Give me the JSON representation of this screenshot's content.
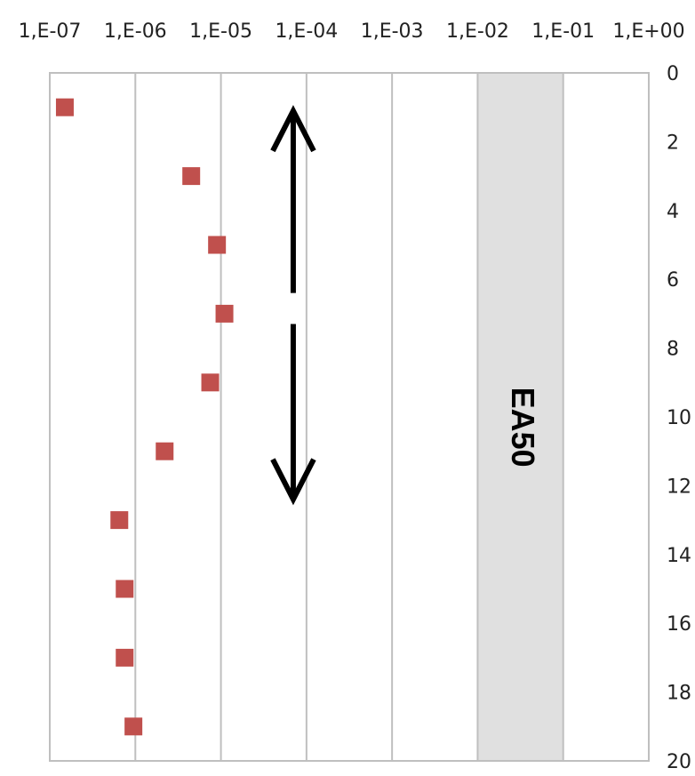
{
  "chart_data": {
    "type": "scatter",
    "x_scale": "log",
    "x_ticks": [
      {
        "value": 1e-07,
        "label": "1,E-07"
      },
      {
        "value": 1e-06,
        "label": "1,E-06"
      },
      {
        "value": 1e-05,
        "label": "1,E-05"
      },
      {
        "value": 0.0001,
        "label": "1,E-04"
      },
      {
        "value": 0.001,
        "label": "1,E-03"
      },
      {
        "value": 0.01,
        "label": "1,E-02"
      },
      {
        "value": 0.1,
        "label": "1,E-01"
      },
      {
        "value": 1,
        "label": "1,E+00"
      }
    ],
    "xlim": [
      1e-07,
      1
    ],
    "x_axis_position": "top",
    "y_ticks": [
      {
        "value": 0,
        "label": "0"
      },
      {
        "value": 2,
        "label": "2"
      },
      {
        "value": 4,
        "label": "4"
      },
      {
        "value": 6,
        "label": "6"
      },
      {
        "value": 8,
        "label": "8"
      },
      {
        "value": 10,
        "label": "10"
      },
      {
        "value": 12,
        "label": "12"
      },
      {
        "value": 14,
        "label": "14"
      },
      {
        "value": 16,
        "label": "16"
      },
      {
        "value": 18,
        "label": "18"
      },
      {
        "value": 20,
        "label": "20"
      }
    ],
    "ylim": [
      0,
      20
    ],
    "y_inverted": true,
    "y_axis_position": "right",
    "grid": "vertical",
    "series": [
      {
        "color": "#c0504d",
        "marker": "square",
        "points": [
          {
            "x": 1.5e-07,
            "y": 1
          },
          {
            "x": 4.5e-06,
            "y": 3
          },
          {
            "x": 9e-06,
            "y": 5
          },
          {
            "x": 1.1e-05,
            "y": 7
          },
          {
            "x": 7.5e-06,
            "y": 9
          },
          {
            "x": 2.2e-06,
            "y": 11
          },
          {
            "x": 6.5e-07,
            "y": 13
          },
          {
            "x": 7.5e-07,
            "y": 15
          },
          {
            "x": 7.5e-07,
            "y": 17
          },
          {
            "x": 9.5e-07,
            "y": 19
          }
        ]
      }
    ],
    "shaded_band": {
      "x_range": [
        0.01,
        0.1
      ],
      "label": "EA50",
      "color": "#e0e0e0"
    },
    "annotation_arrow": {
      "x": 7e-05,
      "y_range": [
        1,
        12.5
      ],
      "style": "double-headed, gap in middle"
    }
  }
}
